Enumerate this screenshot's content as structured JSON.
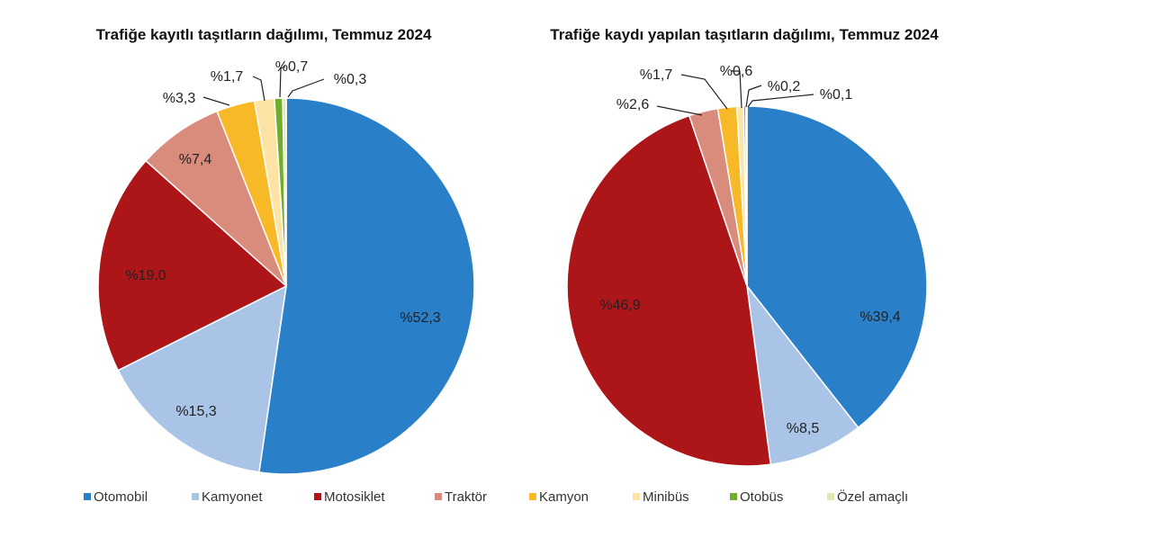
{
  "colors": {
    "Otomobil": "#2a7fc9",
    "Kamyonet": "#a9c4e6",
    "Motosiklet": "#ad1619",
    "Traktör": "#d98c7c",
    "Kamyon": "#f7b928",
    "Minibüs": "#fde3a4",
    "Otobüs": "#6fae2a",
    "Özel amaçlı": "#e3e8b0"
  },
  "legend": [
    "Otomobil",
    "Kamyonet",
    "Motosiklet",
    "Traktör",
    "Kamyon",
    "Minibüs",
    "Otobüs",
    "Özel amaçlı"
  ],
  "chart_data": [
    {
      "type": "pie",
      "title": "Trafiğe kayıtlı taşıtların dağılımı, Temmuz 2024",
      "labels": [
        "Otomobil",
        "Kamyonet",
        "Motosiklet",
        "Traktör",
        "Kamyon",
        "Minibüs",
        "Otobüs",
        "Özel amaçlı"
      ],
      "values": [
        52.3,
        15.3,
        19.0,
        7.4,
        3.3,
        1.7,
        0.7,
        0.3
      ],
      "value_labels": [
        "%52,3",
        "%15,3",
        "%19,0",
        "%7,4",
        "%3,3",
        "%1,7",
        "%0,7",
        "%0,3"
      ],
      "start": "12 o'clock",
      "direction": "clockwise"
    },
    {
      "type": "pie",
      "title": "Trafiğe kaydı yapılan taşıtların dağılımı, Temmuz 2024",
      "labels": [
        "Otomobil",
        "Kamyonet",
        "Motosiklet",
        "Traktör",
        "Kamyon",
        "Minibüs",
        "Otobüs",
        "Özel amaçlı"
      ],
      "values": [
        39.4,
        8.5,
        46.9,
        2.6,
        1.7,
        0.6,
        0.2,
        0.1
      ],
      "value_labels": [
        "%39,4",
        "%8,5",
        "%46,9",
        "%2,6",
        "%1,7",
        "%0,6",
        "%0,2",
        "%0,1"
      ],
      "start": "12 o'clock",
      "direction": "clockwise"
    }
  ]
}
